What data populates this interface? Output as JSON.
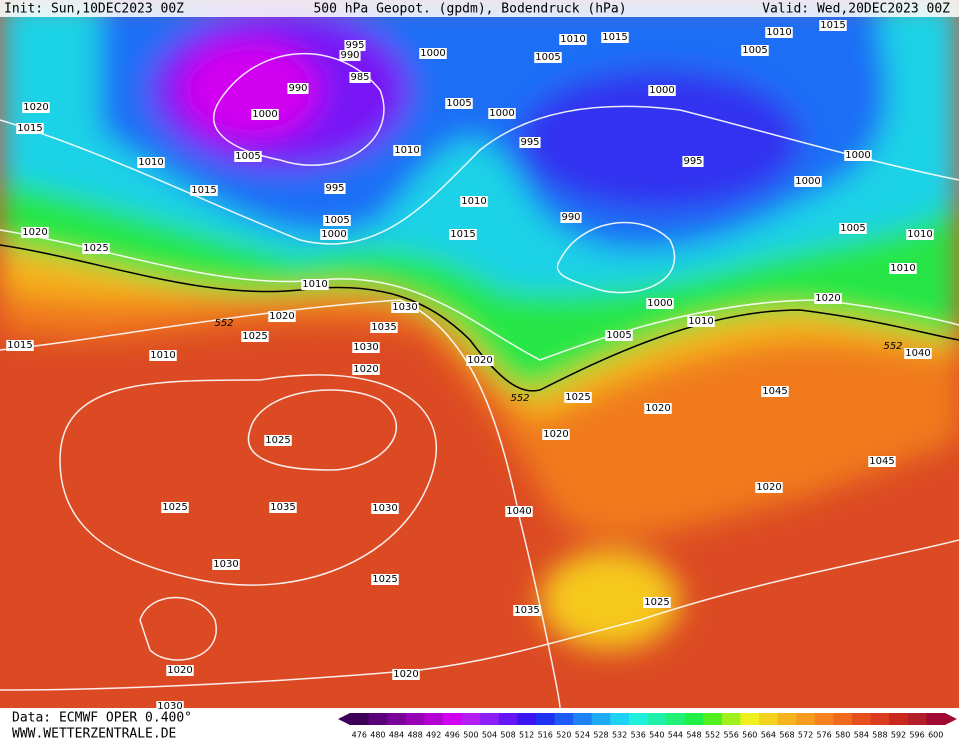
{
  "header": {
    "init": "Init: Sun,10DEC2023 00Z",
    "title": "500 hPa Geopot. (gpdm), Bodendruck (hPa)",
    "valid": "Valid: Wed,20DEC2023 00Z"
  },
  "footer": {
    "source": "Data: ECMWF OPER 0.400°",
    "site": "WWW.WETTERZENTRALE.DE"
  },
  "isobar_labels": [
    "995",
    "990",
    "1000",
    "1010",
    "1015",
    "1010",
    "1015",
    "1005",
    "1005",
    "1000",
    "1020",
    "1015",
    "990",
    "985",
    "1000",
    "1005",
    "1000",
    "1010",
    "995",
    "995",
    "1000",
    "1010",
    "1005",
    "995",
    "1000",
    "1015",
    "1010",
    "990",
    "1005",
    "1000",
    "1005",
    "1010",
    "1020",
    "1025",
    "1015",
    "1010",
    "1010",
    "1020",
    "1000",
    "1030",
    "1020",
    "1025",
    "1035",
    "1010",
    "1005",
    "1015",
    "1010",
    "1030",
    "1040",
    "1020",
    "1045",
    "1025",
    "1020",
    "1020",
    "1025",
    "1045",
    "1020",
    "1025",
    "1035",
    "1030",
    "1040",
    "1030",
    "1025",
    "1035",
    "1025",
    "1020",
    "1020",
    "1030",
    "1020"
  ],
  "contour_552_labels": [
    "552",
    "552",
    "552"
  ],
  "scale": {
    "labels": [
      476,
      480,
      484,
      488,
      492,
      496,
      500,
      504,
      508,
      512,
      516,
      520,
      524,
      528,
      532,
      536,
      540,
      544,
      548,
      552,
      556,
      560,
      564,
      568,
      572,
      576,
      580,
      584,
      588,
      592,
      596,
      600
    ],
    "colors": [
      "#3c0058",
      "#5a0078",
      "#780096",
      "#9600b4",
      "#b400d2",
      "#d200f0",
      "#b41ef0",
      "#8c1ef5",
      "#6414f5",
      "#3c14f0",
      "#1e32f0",
      "#1e5af5",
      "#1e82f5",
      "#1eaaf5",
      "#1ed2f5",
      "#1ef0dc",
      "#1ef0aa",
      "#1ef078",
      "#1ef046",
      "#50f01e",
      "#a0f01e",
      "#f0f01e",
      "#f5d21e",
      "#f5b41e",
      "#f59b1e",
      "#f5821e",
      "#f0691e",
      "#e6501e",
      "#dc3c1e",
      "#c8281e",
      "#b41e28",
      "#a00a32"
    ]
  }
}
